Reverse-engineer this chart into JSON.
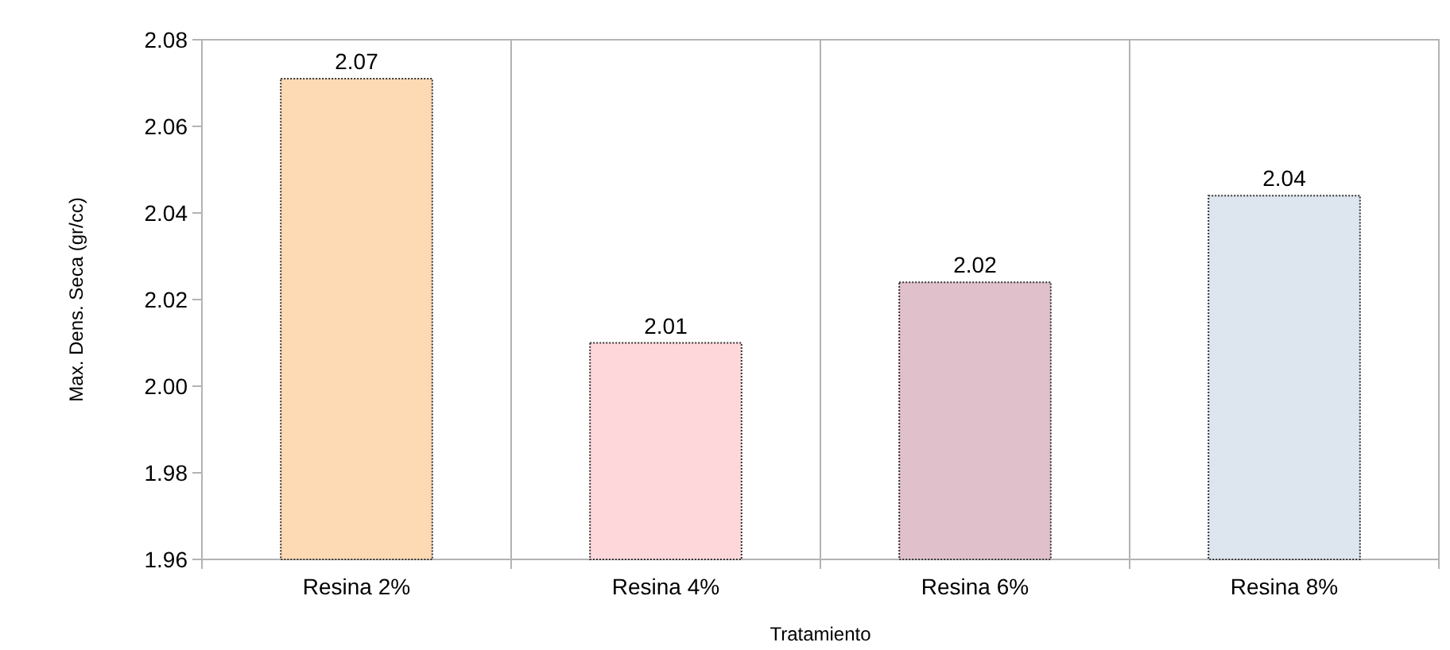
{
  "chart_data": {
    "type": "bar",
    "xlabel": "Tratamiento",
    "ylabel": "Max. Dens. Seca (gr/cc)",
    "categories": [
      "Resina 2%",
      "Resina 4%",
      "Resina 6%",
      "Resina 8%"
    ],
    "values": [
      2.071,
      2.01,
      2.024,
      2.044
    ],
    "value_labels": [
      "2.07",
      "2.01",
      "2.02",
      "2.04"
    ],
    "colors": [
      "#fdd9b4",
      "#fdd7d9",
      "#dfc0cb",
      "#dde5ee"
    ],
    "ylim": [
      1.96,
      2.08
    ],
    "yticks": [
      {
        "value": 1.96,
        "label": "1.96"
      },
      {
        "value": 1.98,
        "label": "1.98"
      },
      {
        "value": 2.0,
        "label": "2.00"
      },
      {
        "value": 2.02,
        "label": "2.02"
      },
      {
        "value": 2.04,
        "label": "2.04"
      },
      {
        "value": 2.06,
        "label": "2.06"
      },
      {
        "value": 2.08,
        "label": "2.08"
      }
    ],
    "grid": "x"
  }
}
